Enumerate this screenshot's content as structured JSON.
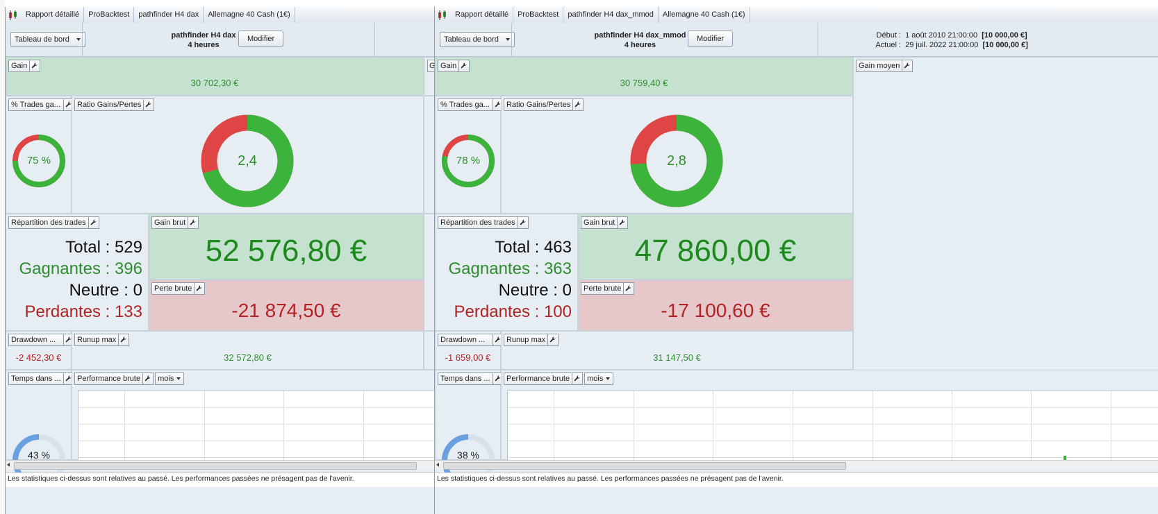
{
  "left": {
    "tabs": [
      "Rapport détaillé",
      "ProBacktest",
      "pathfinder H4 dax",
      "Allemagne 40 Cash (1€)"
    ],
    "dashboard_label": "Tableau de bord",
    "strategy_name": "pathfinder H4 dax",
    "timeframe": "4 heures",
    "modify_label": "Modifier",
    "gain": {
      "title": "Gain",
      "value": "30 702,30 €"
    },
    "pct_trades": {
      "title": "% Trades ga...",
      "label": "75 %",
      "value": 0.75
    },
    "ratio": {
      "title": "Ratio Gains/Pertes",
      "label": "2,4",
      "value": 2.4
    },
    "repartition": {
      "title": "Répartition des trades",
      "total_label": "Total",
      "total": "529",
      "gagnantes_label": "Gagnantes",
      "gagnantes": "396",
      "neutre_label": "Neutre",
      "neutre": "0",
      "perdantes_label": "Perdantes",
      "perdantes": "133"
    },
    "gain_brut": {
      "title": "Gain brut",
      "value": "52 576,80 €"
    },
    "perte_brute": {
      "title": "Perte brute",
      "value": "-21 874,50 €"
    },
    "drawdown": {
      "title": "Drawdown ...",
      "value": "-2 452,30 €"
    },
    "runup": {
      "title": "Runup max",
      "value": "32 572,80 €"
    },
    "temps": {
      "title": "Temps dans ...",
      "label": "43 %",
      "value": 0.43
    },
    "perf": {
      "title": "Performance brute",
      "period": "mois"
    },
    "footer": "Les statistiques ci-dessus sont relatives au passé. Les performances passées ne présagent pas de l'avenir."
  },
  "right": {
    "tabs": [
      "Rapport détaillé",
      "ProBacktest",
      "pathfinder H4 dax_mmod",
      "Allemagne 40 Cash (1€)"
    ],
    "dashboard_label": "Tableau de bord",
    "strategy_name": "pathfinder H4 dax_mmod",
    "timeframe": "4 heures",
    "modify_label": "Modifier",
    "debut_label": "Début :",
    "debut_date": "1 août 2010 21:00:00",
    "debut_amount": "[10 000,00 €]",
    "actuel_label": "Actuel :",
    "actuel_date": "29 juil. 2022 21:00:00",
    "actuel_amount": "[10 000,00 €]",
    "gain": {
      "title": "Gain",
      "value": "30 759,40 €"
    },
    "gain_moyen": {
      "title": "Gain moyen"
    },
    "pct_trades": {
      "title": "% Trades ga...",
      "label": "78 %",
      "value": 0.78
    },
    "ratio": {
      "title": "Ratio Gains/Pertes",
      "label": "2,8",
      "value": 2.8
    },
    "repartition": {
      "title": "Répartition des trades",
      "total_label": "Total",
      "total": "463",
      "gagnantes_label": "Gagnantes",
      "gagnantes": "363",
      "neutre_label": "Neutre",
      "neutre": "0",
      "perdantes_label": "Perdantes",
      "perdantes": "100"
    },
    "gain_brut": {
      "title": "Gain brut",
      "value": "47 860,00 €"
    },
    "perte_brute": {
      "title": "Perte brute",
      "value": "-17 100,60 €"
    },
    "drawdown": {
      "title": "Drawdown ...",
      "value": "-1 659,00 €"
    },
    "runup": {
      "title": "Runup max",
      "value": "31 147,50 €"
    },
    "temps": {
      "title": "Temps dans ...",
      "label": "38 %",
      "value": 0.38
    },
    "perf": {
      "title": "Performance brute",
      "period": "mois"
    },
    "footer": "Les statistiques ci-dessus sont relatives au passé. Les performances passées ne présagent pas de l'avenir."
  },
  "colors": {
    "win": "#3cb43c",
    "loss": "#e04545",
    "time": "#6a9fe0",
    "time_bg": "#d7e1ea"
  }
}
